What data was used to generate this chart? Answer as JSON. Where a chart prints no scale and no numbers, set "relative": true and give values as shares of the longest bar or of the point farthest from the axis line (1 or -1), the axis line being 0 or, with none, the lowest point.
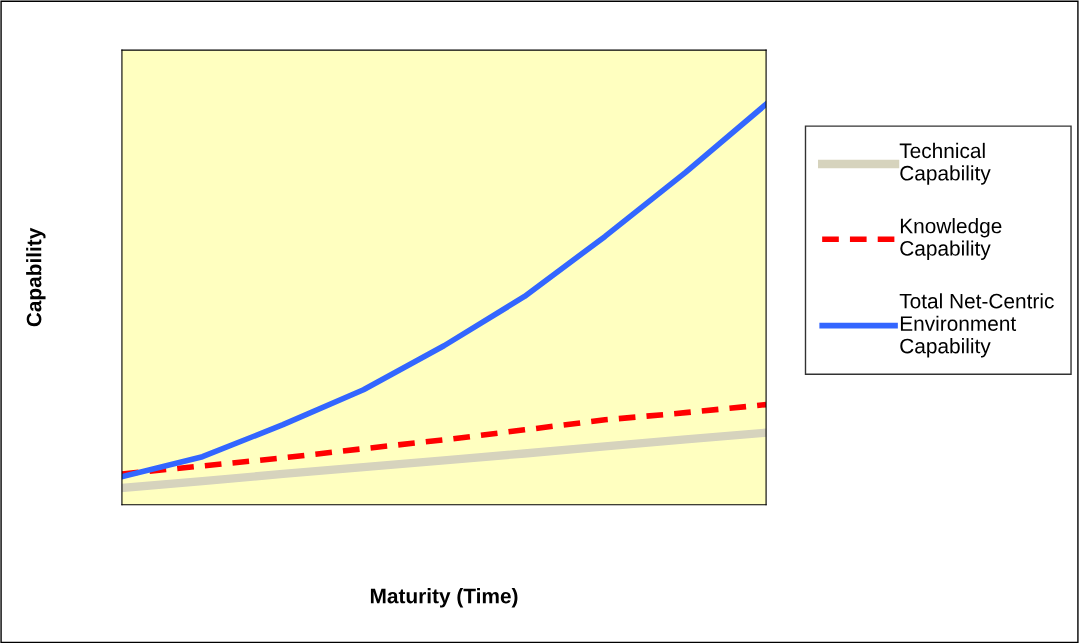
{
  "chart_data": {
    "type": "line",
    "relative": true,
    "xlabel": "Maturity (Time)",
    "ylabel": "Capability",
    "legend": "right",
    "marker": "none",
    "categories": [
      null,
      null,
      null,
      null,
      null,
      null,
      null,
      null,
      null
    ],
    "series": [
      {
        "name": "Technical\nCapability",
        "color": "#d6d3bd",
        "line_style": "solid",
        "values": [
          0.042,
          0.059,
          0.077,
          0.094,
          0.111,
          0.128,
          0.146,
          0.163,
          0.18
        ]
      },
      {
        "name": "Knowledge\nCapability",
        "color": "#ff0000",
        "line_style": "dashed",
        "values": [
          0.077,
          0.097,
          0.117,
          0.14,
          0.162,
          0.187,
          0.212,
          0.23,
          0.25
        ]
      },
      {
        "name": "Total Net-Centric\nEnvironment\nCapability",
        "color": "#3366ff",
        "line_style": "solid",
        "values": [
          0.07,
          0.12,
          0.2,
          0.287,
          0.397,
          0.52,
          0.67,
          0.83,
          1.0
        ]
      }
    ]
  }
}
